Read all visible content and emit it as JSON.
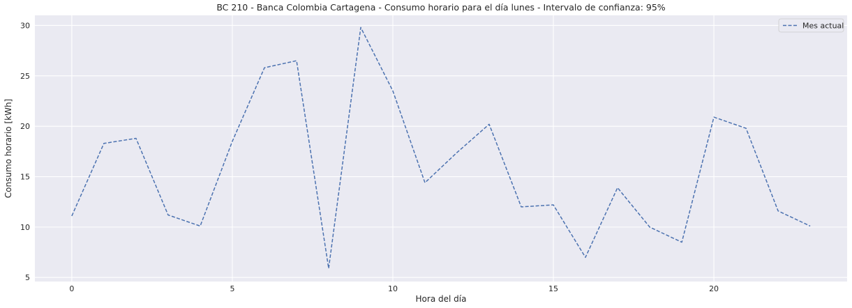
{
  "chart_data": {
    "type": "line",
    "title": "BC 210 - Banca Colombia Cartagena - Consumo horario para el día lunes - Intervalo de confianza: 95%",
    "xlabel": "Hora del día",
    "ylabel": "Consumo horario [kWh]",
    "xlim": [
      -1.15,
      24.15
    ],
    "ylim": [
      4.6,
      31.0
    ],
    "xticks": [
      0,
      5,
      10,
      15,
      20
    ],
    "yticks": [
      5,
      10,
      15,
      20,
      25,
      30
    ],
    "grid": true,
    "legend_position": "top-right",
    "series": [
      {
        "name": "Mes actual",
        "color": "#4c72b0",
        "style": "dashed",
        "x": [
          0,
          1,
          2,
          3,
          4,
          5,
          6,
          7,
          8,
          9,
          10,
          11,
          12,
          13,
          14,
          15,
          16,
          17,
          18,
          19,
          20,
          21,
          22,
          23
        ],
        "y": [
          11.1,
          18.3,
          18.8,
          11.2,
          10.1,
          18.5,
          25.8,
          26.5,
          5.9,
          29.8,
          23.5,
          14.4,
          17.4,
          20.2,
          12.0,
          12.2,
          7.0,
          13.9,
          10.0,
          8.5,
          20.9,
          19.8,
          11.6,
          10.1
        ]
      }
    ]
  }
}
